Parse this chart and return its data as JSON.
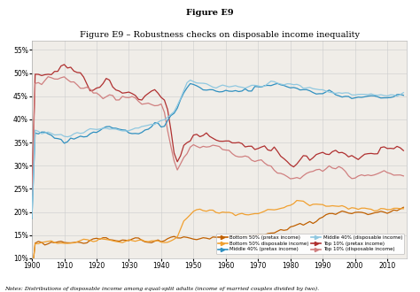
{
  "title_bold": "Figure E9",
  "title_rest": " – Robustness checks on disposable income inequality",
  "notes": "Notes: Distributions of disposable income among equal-split adults (income of married couples divided by two).",
  "ylim": [
    0.1,
    0.57
  ],
  "yticks": [
    0.1,
    0.15,
    0.2,
    0.25,
    0.3,
    0.35,
    0.4,
    0.45,
    0.5,
    0.55
  ],
  "xticks": [
    1900,
    1910,
    1920,
    1930,
    1940,
    1950,
    1960,
    1970,
    1980,
    1990,
    2000,
    2010
  ],
  "colors": {
    "top10_pretax": "#b03030",
    "top10_disposable": "#d08080",
    "middle40_pretax": "#3090c0",
    "middle40_disposable": "#90c8e0",
    "bottom50_pretax": "#c06000",
    "bottom50_disposable": "#f0a030"
  },
  "legend": [
    {
      "label": "Bottom 50% (pretax income)",
      "color": "#c06000"
    },
    {
      "label": "Bottom 50% disposable income)",
      "color": "#f0a030"
    },
    {
      "label": "Middle 40% (pretax income)",
      "color": "#3090c0"
    },
    {
      "label": "Middle 40% (disposable income)",
      "color": "#90c8e0"
    },
    {
      "label": "Top 10% (pretax income)",
      "color": "#b03030"
    },
    {
      "label": "Top 10% (disposable income)",
      "color": "#d08080"
    }
  ],
  "background_color": "#f0ede8",
  "grid_color": "#cccccc"
}
